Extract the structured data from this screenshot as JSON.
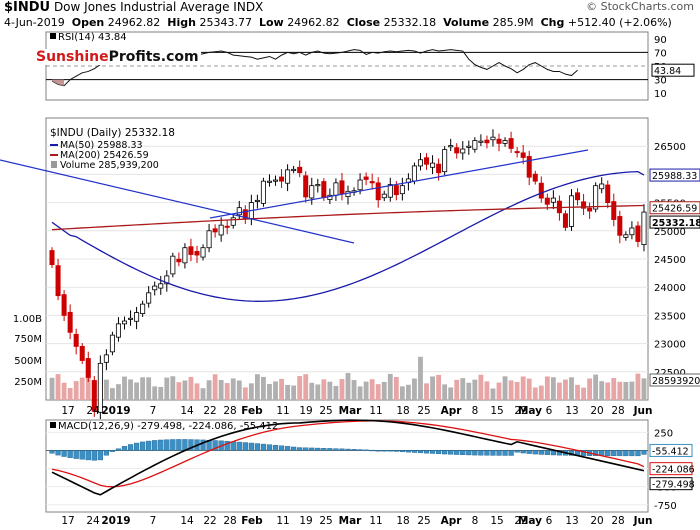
{
  "header": {
    "symbol": "$INDU",
    "name": "Dow Jones Industrial Average",
    "exchange": "INDX",
    "date": "4-Jun-2019",
    "open_label": "Open",
    "open": "24962.82",
    "high_label": "High",
    "high": "25343.77",
    "low_label": "Low",
    "low": "24962.82",
    "close_label": "Close",
    "close": "25332.18",
    "volume_label": "Volume",
    "volume": "285.9M",
    "chg_label": "Chg",
    "chg": "+512.40 (+2.06%)",
    "credit": "© StockCharts.com"
  },
  "watermark": {
    "part1": "Sunshine",
    "part2": "Profits.com"
  },
  "colors": {
    "up": "#000000",
    "down": "#cc0000",
    "ma50": "#1a1aaa",
    "ma200": "#aa1a1a",
    "macd_hist": "#3a8fc4"
  },
  "chart_data": [
    {
      "type": "line",
      "title": "RSI(14) 43.84",
      "legend": "RSI(14)",
      "legend_value": "43.84",
      "ylim": [
        0,
        100
      ],
      "levels": [
        70,
        30
      ],
      "ticks": [
        "90",
        "70",
        "50",
        "30",
        "10"
      ],
      "last_label": "43.84",
      "values": [
        28,
        23,
        21,
        30,
        35,
        40,
        42,
        46,
        52,
        58,
        63,
        66,
        67,
        68,
        70,
        72,
        74,
        70,
        72,
        73,
        71,
        69,
        70,
        68,
        66,
        68,
        70,
        71,
        72,
        70,
        66,
        65,
        64,
        63,
        60,
        62,
        64,
        60,
        66,
        70,
        68,
        70,
        66,
        70,
        72,
        69,
        68,
        69,
        70,
        72,
        74,
        73,
        67,
        70,
        69,
        71,
        72,
        71,
        72,
        73,
        72,
        69,
        72,
        74,
        72,
        73,
        74,
        73,
        72,
        60,
        52,
        48,
        45,
        50,
        55,
        50,
        46,
        40,
        45,
        52,
        55,
        50,
        45,
        42,
        42,
        38,
        36,
        43.84
      ]
    },
    {
      "type": "candlestick",
      "title": "$INDU (Daily) 25332.18",
      "legend": [
        {
          "name": "$INDU (Daily)",
          "value": "25332.18"
        },
        {
          "name": "MA(50)",
          "value": "25988.33"
        },
        {
          "name": "MA(200)",
          "value": "25426.59"
        },
        {
          "name": "Volume",
          "value": "285,939,200"
        }
      ],
      "ylim": [
        22000,
        27000
      ],
      "yticks": [
        "26500",
        "26000",
        "25500",
        "25000",
        "24500",
        "24000",
        "23500",
        "23000",
        "22500"
      ],
      "tags": {
        "ma50": "25988.33",
        "ma200": "25426.59",
        "close": "25332.18",
        "volume": "285939200"
      },
      "volume_ticks": [
        "1.00B",
        "750M",
        "500M",
        "250M"
      ],
      "close": [
        24400,
        23850,
        23500,
        23200,
        22950,
        22700,
        22400,
        21800,
        22650,
        22800,
        23150,
        23350,
        23400,
        23450,
        23550,
        23700,
        23900,
        24020,
        24060,
        24200,
        24550,
        24450,
        24700,
        24580,
        24570,
        24700,
        25000,
        24980,
        25100,
        25080,
        25230,
        25410,
        25220,
        25500,
        25540,
        25880,
        25880,
        25900,
        25880,
        26080,
        26090,
        26030,
        25600,
        25800,
        25820,
        25590,
        25630,
        25850,
        25660,
        25700,
        25710,
        25900,
        25910,
        25850,
        25550,
        25650,
        25820,
        25640,
        25800,
        25920,
        26150,
        26260,
        26180,
        26200,
        26030,
        26440,
        26510,
        26380,
        26450,
        26500,
        26600,
        26590,
        26560,
        26660,
        26550,
        26600,
        26460,
        26400,
        26300,
        25950,
        25880,
        25580,
        25470,
        25580,
        25320,
        25060,
        25620,
        25550,
        25400,
        25350,
        25800,
        25830,
        25500,
        25200,
        24920,
        24930,
        25050,
        24810,
        25332
      ]
    },
    {
      "type": "line",
      "title": "MACD(12,26,9) -279.498, -224.086, -55.412",
      "legend": "MACD(12,26,9)",
      "values_label": "-279.498, -224.086, -55.412",
      "ylim": [
        -850,
        420
      ],
      "yticks": [
        "250",
        "0",
        "-250",
        "-500",
        "-750"
      ],
      "tags": {
        "histogram": "-55.412",
        "macd": "-279.498",
        "signal": "-224.086"
      }
    }
  ],
  "x_axis": {
    "labels": [
      {
        "text": "17",
        "bold": false
      },
      {
        "text": "24",
        "bold": false
      },
      {
        "text": "2019",
        "bold": true
      },
      {
        "text": "7",
        "bold": false
      },
      {
        "text": "14",
        "bold": false
      },
      {
        "text": "22",
        "bold": false
      },
      {
        "text": "28",
        "bold": false
      },
      {
        "text": "Feb",
        "bold": true
      },
      {
        "text": "11",
        "bold": false
      },
      {
        "text": "19",
        "bold": false
      },
      {
        "text": "25",
        "bold": false
      },
      {
        "text": "Mar",
        "bold": true
      },
      {
        "text": "11",
        "bold": false
      },
      {
        "text": "18",
        "bold": false
      },
      {
        "text": "25",
        "bold": false
      },
      {
        "text": "Apr",
        "bold": true
      },
      {
        "text": "8",
        "bold": false
      },
      {
        "text": "15",
        "bold": false
      },
      {
        "text": "22",
        "bold": false
      },
      {
        "text": "May",
        "bold": true
      },
      {
        "text": "6",
        "bold": false
      },
      {
        "text": "13",
        "bold": false
      },
      {
        "text": "20",
        "bold": false
      },
      {
        "text": "28",
        "bold": false
      },
      {
        "text": "Jun",
        "bold": true
      }
    ]
  }
}
